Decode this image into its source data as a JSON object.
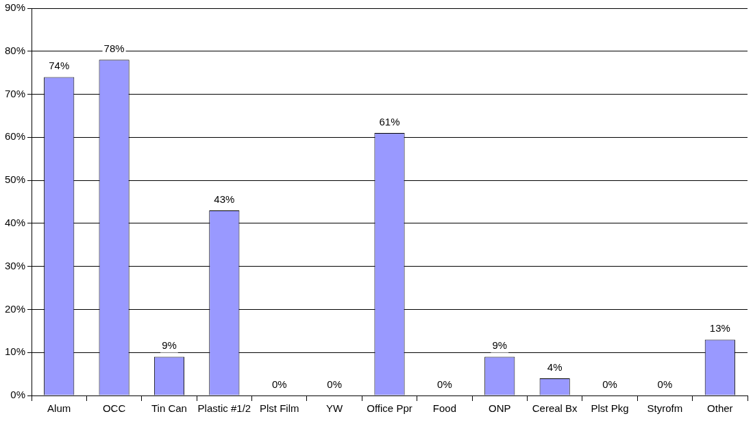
{
  "chart_data": {
    "type": "bar",
    "categories": [
      "Alum",
      "OCC",
      "Tin Can",
      "Plastic #1/2",
      "Plst Film",
      "YW",
      "Office Ppr",
      "Food",
      "ONP",
      "Cereal Bx",
      "Plst Pkg",
      "Styrofm",
      "Other"
    ],
    "values": [
      74,
      78,
      9,
      43,
      0,
      0,
      61,
      0,
      9,
      4,
      0,
      0,
      13
    ],
    "value_labels": [
      "74%",
      "78%",
      "9%",
      "43%",
      "0%",
      "0%",
      "61%",
      "0%",
      "9%",
      "4%",
      "0%",
      "0%",
      "13%"
    ],
    "color": "#9999ff",
    "ylim": [
      0,
      90
    ],
    "yticks": [
      {
        "value": 0,
        "label": "0%"
      },
      {
        "value": 10,
        "label": "10%"
      },
      {
        "value": 20,
        "label": "20%"
      },
      {
        "value": 30,
        "label": "30%"
      },
      {
        "value": 40,
        "label": "40%"
      },
      {
        "value": 50,
        "label": "50%"
      },
      {
        "value": 60,
        "label": "60%"
      },
      {
        "value": 70,
        "label": "70%"
      },
      {
        "value": 80,
        "label": "80%"
      },
      {
        "value": 90,
        "label": "90%"
      }
    ],
    "grid": "y",
    "legend": false
  }
}
